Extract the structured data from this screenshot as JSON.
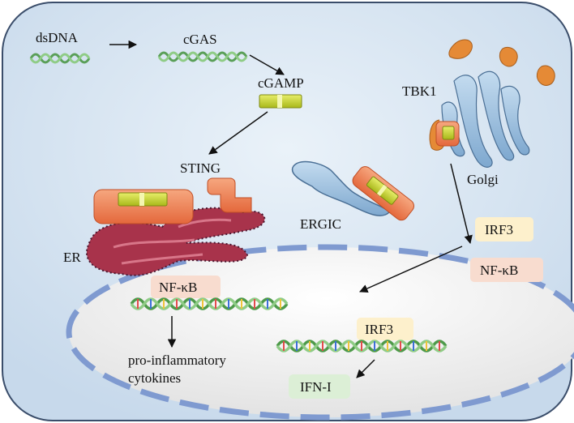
{
  "labels": {
    "dsdna": "dsDNA",
    "cgas": "cGAS",
    "cgamp": "cGAMP",
    "sting": "STING",
    "er": "ER",
    "ergic": "ERGIC",
    "tbk1": "TBK1",
    "golgi": "Golgi",
    "irf3_cyto": "IRF3",
    "nfkb_cyto": "NF-κB",
    "nfkb_nuc": "NF-κB",
    "irf3_nuc": "IRF3",
    "cytokines_line1": "pro-inflammatory",
    "cytokines_line2": "cytokines",
    "ifn": "IFN-I"
  },
  "colors": {
    "cell_fill": "#d3e2f0",
    "cell_stroke": "#3a4d6a",
    "nucleus_dash": "#7f9ad0",
    "dna_green": "#6fb86a",
    "sting_orange": "#f08a5b",
    "cgamp_yellow": "#c9d62a",
    "er_red": "#a8334b",
    "golgi_blue": "#8fb6d9",
    "tbk1_orange": "#e58a36",
    "irf3_box": "#fdf0cc",
    "nfkb_box": "#f8dccf",
    "ifn_box": "#dcefd6"
  }
}
